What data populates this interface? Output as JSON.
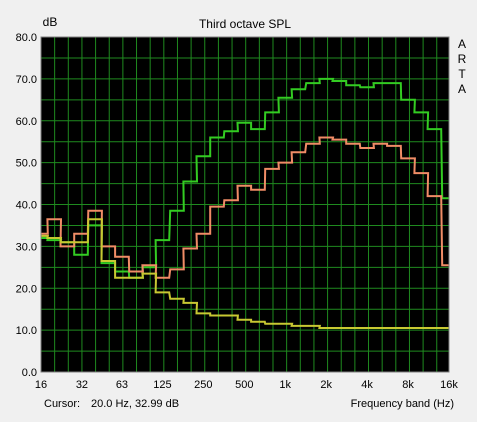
{
  "chart_data": {
    "type": "line",
    "title": "Third octave SPL",
    "ylabel": "dB",
    "xlabel": "Frequency band (Hz)",
    "watermark": "ARTA",
    "cursor_label": "Cursor:",
    "cursor_value": "20.0 Hz, 32.99 dB",
    "ylim": [
      0,
      80
    ],
    "y_ticks": [
      "0.0",
      "10.0",
      "20.0",
      "30.0",
      "40.0",
      "50.0",
      "60.0",
      "70.0",
      "80.0"
    ],
    "x_ticks": [
      {
        "label": "16",
        "hz": 16
      },
      {
        "label": "32",
        "hz": 32
      },
      {
        "label": "63",
        "hz": 63
      },
      {
        "label": "125",
        "hz": 125
      },
      {
        "label": "250",
        "hz": 250
      },
      {
        "label": "500",
        "hz": 500
      },
      {
        "label": "1k",
        "hz": 1000
      },
      {
        "label": "2k",
        "hz": 2000
      },
      {
        "label": "4k",
        "hz": 4000
      },
      {
        "label": "8k",
        "hz": 8000
      },
      {
        "label": "16k",
        "hz": 16000
      }
    ],
    "x_range_hz": [
      16,
      16000
    ],
    "x_scale": "log",
    "grid": true,
    "colors": {
      "background": "#000000",
      "grid": "#1f8a1f",
      "panel": "#f0f0f0",
      "green": "#33cc22",
      "salmon": "#f08c66",
      "yellow": "#c8c832"
    },
    "bands": [
      16,
      20,
      25,
      31.5,
      40,
      50,
      63,
      80,
      100,
      125,
      160,
      200,
      250,
      315,
      400,
      500,
      630,
      800,
      1000,
      1250,
      1600,
      2000,
      2500,
      3150,
      4000,
      5000,
      6300,
      8000,
      10000,
      12500,
      16000
    ],
    "series": [
      {
        "color": "#33cc22",
        "values": [
          32,
          31.5,
          31,
          28,
          35,
          26,
          24,
          22.5,
          25,
          31.5,
          38.5,
          45.5,
          51.5,
          56,
          57.5,
          59.5,
          58,
          62,
          65.5,
          67.5,
          69,
          70,
          69.5,
          68.5,
          68,
          69,
          69,
          65,
          62,
          58,
          41.5
        ]
      },
      {
        "color": "#f08c66",
        "values": [
          33,
          36.5,
          30,
          33,
          38.5,
          30,
          27.5,
          24,
          25.5,
          22.5,
          24.5,
          29.5,
          33,
          39.5,
          41,
          44.5,
          43.5,
          48.5,
          50,
          52.5,
          54.5,
          56,
          55.5,
          54.5,
          53.5,
          54.5,
          54,
          51,
          47.5,
          42,
          25.5
        ]
      },
      {
        "color": "#c8c832",
        "values": [
          32.5,
          32,
          31,
          31,
          36.5,
          26.5,
          22.5,
          22.5,
          23.5,
          19,
          17.5,
          16.5,
          14,
          13.5,
          13.5,
          12.5,
          12,
          11.5,
          11.5,
          11,
          11,
          10.5,
          10.5,
          10.5,
          10.5,
          10.5,
          10.5,
          10.5,
          10.5,
          10.5,
          10.5
        ]
      }
    ]
  }
}
